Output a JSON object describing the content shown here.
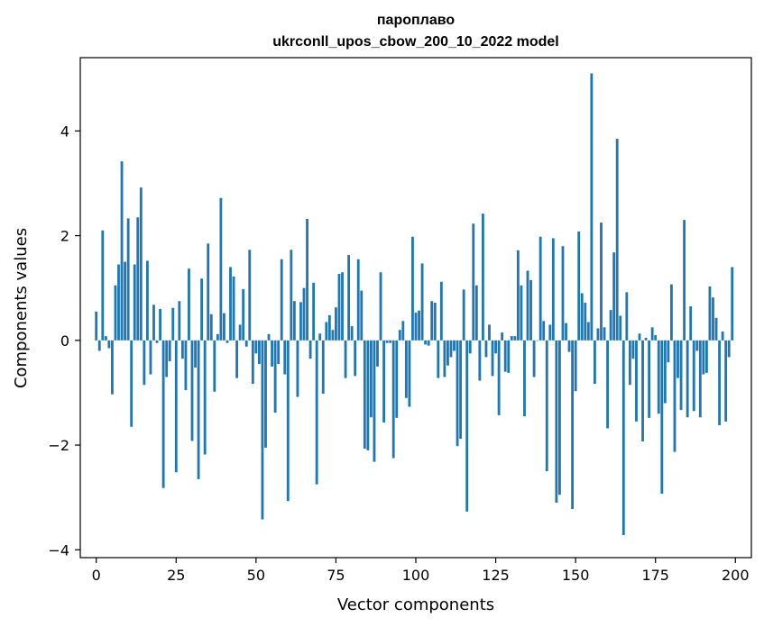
{
  "chart_data": {
    "type": "bar",
    "title": "пароплаво",
    "subtitle": "ukrconll_upos_cbow_200_10_2022 model",
    "xlabel": "Vector components",
    "ylabel": "Components values",
    "xlim": [
      -5,
      205
    ],
    "ylim": [
      -4.15,
      5.4
    ],
    "xticks": [
      0,
      25,
      50,
      75,
      100,
      125,
      150,
      175,
      200
    ],
    "xtick_labels": [
      "0",
      "25",
      "50",
      "75",
      "100",
      "125",
      "150",
      "175",
      "200"
    ],
    "yticks": [
      -4,
      -2,
      0,
      2,
      4
    ],
    "ytick_labels": [
      "−4",
      "−2",
      "0",
      "2",
      "4"
    ],
    "grid": false,
    "bar_color": "#1f77b4",
    "x": [
      0,
      1,
      2,
      3,
      4,
      5,
      6,
      7,
      8,
      9,
      10,
      11,
      12,
      13,
      14,
      15,
      16,
      17,
      18,
      19,
      20,
      21,
      22,
      23,
      24,
      25,
      26,
      27,
      28,
      29,
      30,
      31,
      32,
      33,
      34,
      35,
      36,
      37,
      38,
      39,
      40,
      41,
      42,
      43,
      44,
      45,
      46,
      47,
      48,
      49,
      50,
      51,
      52,
      53,
      54,
      55,
      56,
      57,
      58,
      59,
      60,
      61,
      62,
      63,
      64,
      65,
      66,
      67,
      68,
      69,
      70,
      71,
      72,
      73,
      74,
      75,
      76,
      77,
      78,
      79,
      80,
      81,
      82,
      83,
      84,
      85,
      86,
      87,
      88,
      89,
      90,
      91,
      92,
      93,
      94,
      95,
      96,
      97,
      98,
      99,
      100,
      101,
      102,
      103,
      104,
      105,
      106,
      107,
      108,
      109,
      110,
      111,
      112,
      113,
      114,
      115,
      116,
      117,
      118,
      119,
      120,
      121,
      122,
      123,
      124,
      125,
      126,
      127,
      128,
      129,
      130,
      131,
      132,
      133,
      134,
      135,
      136,
      137,
      138,
      139,
      140,
      141,
      142,
      143,
      144,
      145,
      146,
      147,
      148,
      149,
      150,
      151,
      152,
      153,
      154,
      155,
      156,
      157,
      158,
      159,
      160,
      161,
      162,
      163,
      164,
      165,
      166,
      167,
      168,
      169,
      170,
      171,
      172,
      173,
      174,
      175,
      176,
      177,
      178,
      179,
      180,
      181,
      182,
      183,
      184,
      185,
      186,
      187,
      188,
      189,
      190,
      191,
      192,
      193,
      194,
      195,
      196,
      197,
      198,
      199
    ],
    "values": [
      0.55,
      -0.2,
      2.1,
      0.08,
      -0.15,
      -1.03,
      1.05,
      1.45,
      3.42,
      1.5,
      2.33,
      -1.65,
      1.45,
      2.35,
      2.92,
      -0.85,
      1.52,
      -0.65,
      0.68,
      -0.05,
      0.6,
      -2.82,
      -0.7,
      -0.4,
      0.62,
      -2.52,
      0.75,
      -0.35,
      -0.95,
      1.37,
      -1.92,
      -0.52,
      -2.65,
      1.18,
      -2.18,
      1.85,
      0.5,
      -0.98,
      0.12,
      2.72,
      0.52,
      -0.05,
      1.4,
      1.22,
      -0.72,
      0.3,
      0.98,
      -0.12,
      1.73,
      -0.83,
      -0.25,
      -0.45,
      -3.42,
      -2.05,
      0.12,
      -0.5,
      -1.38,
      -0.45,
      1.55,
      -0.65,
      -3.07,
      1.73,
      0.75,
      -1.08,
      0.73,
      1.0,
      2.32,
      -0.35,
      1.1,
      -2.75,
      0.13,
      -1.02,
      0.35,
      0.48,
      0.2,
      0.63,
      1.27,
      1.3,
      -0.72,
      1.63,
      0.27,
      -0.68,
      1.55,
      0.95,
      -2.07,
      -2.1,
      -1.47,
      -2.32,
      -0.5,
      1.3,
      -1.57,
      -0.05,
      -0.05,
      -2.25,
      -1.48,
      0.2,
      0.37,
      -1.1,
      -1.27,
      1.98,
      0.53,
      0.57,
      1.47,
      -0.08,
      -0.1,
      0.75,
      0.72,
      -0.72,
      1.12,
      -0.7,
      -0.48,
      -0.32,
      -0.2,
      -2.02,
      -1.88,
      0.97,
      -3.27,
      -0.25,
      2.23,
      1.05,
      -0.77,
      2.42,
      -0.32,
      0.3,
      -0.68,
      -0.25,
      -1.43,
      0.15,
      -0.6,
      -0.62,
      0.08,
      0.08,
      1.72,
      1.05,
      -1.45,
      1.33,
      1.15,
      -0.7,
      0.0,
      1.98,
      0.37,
      -2.5,
      0.3,
      1.95,
      -3.1,
      -2.95,
      1.8,
      0.33,
      -0.22,
      -3.22,
      -0.97,
      2.08,
      0.9,
      0.72,
      0.35,
      5.1,
      -0.83,
      0.23,
      2.25,
      0.25,
      -1.68,
      0.58,
      1.68,
      3.85,
      0.47,
      -3.72,
      0.92,
      -0.85,
      -0.35,
      -1.55,
      0.13,
      -1.93,
      0.05,
      -1.48,
      0.25,
      0.1,
      -1.4,
      -2.93,
      -1.2,
      -0.42,
      1.07,
      -2.13,
      -0.72,
      -1.33,
      2.3,
      -1.47,
      0.65,
      -1.35,
      -0.2,
      -1.47,
      -0.65,
      -0.62,
      1.03,
      0.82,
      0.43,
      -1.62,
      0.17,
      -1.55,
      -0.32,
      1.4
    ]
  }
}
